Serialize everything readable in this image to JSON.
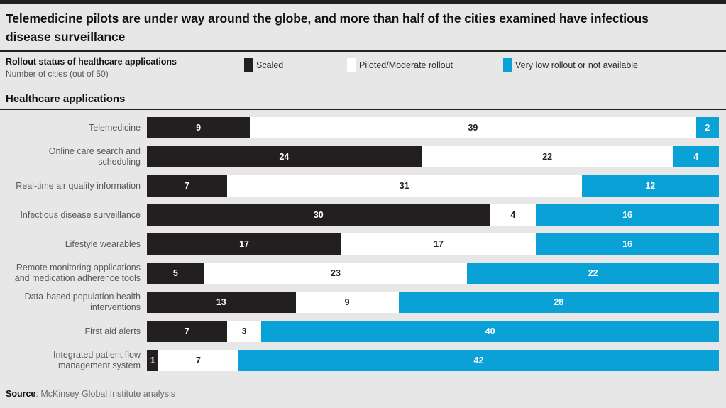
{
  "header": {
    "title": "Telemedicine pilots are under way around the globe, and more than half of the cities examined have infectious disease surveillance",
    "rollout_label": "Rollout status of healthcare applications",
    "units_label": "Number of cities (out of 50)"
  },
  "legend": {
    "items": [
      {
        "label": "Scaled",
        "color": "#231f20"
      },
      {
        "label": "Piloted/Moderate rollout",
        "color": "#ffffff"
      },
      {
        "label": "Very low rollout or not available",
        "color": "#0aa1d6"
      }
    ]
  },
  "section": {
    "title": "Healthcare applications"
  },
  "chart_data": {
    "type": "bar",
    "orientation": "horizontal",
    "stacked": true,
    "title": "Rollout status of healthcare applications",
    "xlabel": "Number of cities (out of 50)",
    "xlim": [
      0,
      50
    ],
    "legend_position": "top",
    "grid": false,
    "categories": [
      "Telemedicine",
      "Online care search and scheduling",
      "Real-time air quality information",
      "Infectious disease surveillance",
      "Lifestyle wearables",
      "Remote monitoring applications and medication adherence tools",
      "Data-based population health interventions",
      "First aid alerts",
      "Integrated patient flow management system"
    ],
    "series": [
      {
        "name": "Scaled",
        "color": "#231f20",
        "label_color": "#ffffff",
        "values": [
          9,
          24,
          7,
          30,
          17,
          5,
          13,
          7,
          1
        ]
      },
      {
        "name": "Piloted/Moderate rollout",
        "color": "#ffffff",
        "label_color": "#231f20",
        "values": [
          39,
          22,
          31,
          4,
          17,
          23,
          9,
          3,
          7
        ]
      },
      {
        "name": "Very low rollout or not available",
        "color": "#0aa1d6",
        "label_color": "#ffffff",
        "values": [
          2,
          4,
          12,
          16,
          16,
          22,
          28,
          40,
          42
        ]
      }
    ]
  },
  "footer": {
    "source_bold": "Source",
    "source_rest": ": McKinsey Global Institute analysis"
  }
}
